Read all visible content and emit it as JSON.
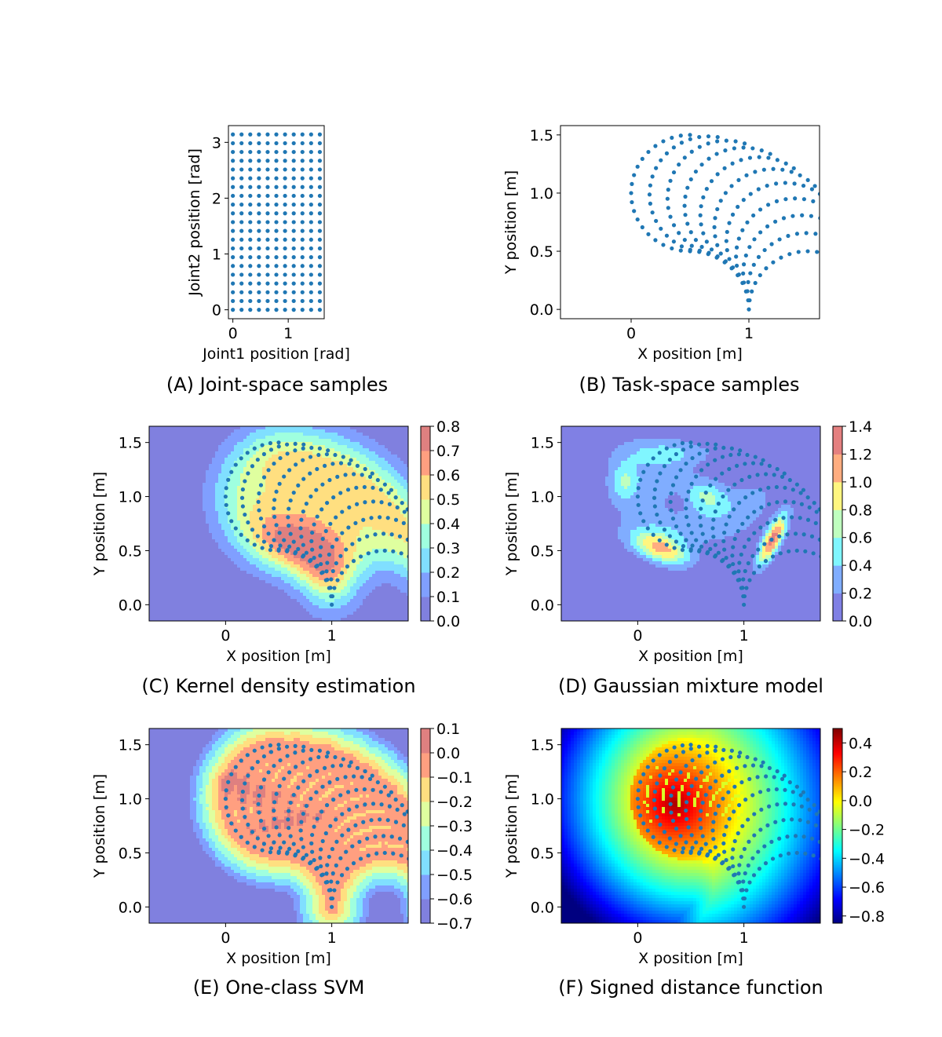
{
  "chart_data": [
    {
      "id": "A",
      "type": "scatter",
      "caption": "(A) Joint-space samples",
      "xlabel": "Joint1 position [rad]",
      "ylabel": "Joint2 position [rad]",
      "xlim": [
        -0.08,
        1.65
      ],
      "ylim": [
        -0.16,
        3.3
      ],
      "xticks": [
        "0",
        "1"
      ],
      "yticks": [
        "0",
        "1",
        "2",
        "3"
      ],
      "grid": {
        "x_from": 0,
        "x_to": 1.5708,
        "nx": 11,
        "y_from": 0,
        "y_to": 3.1416,
        "ny": 21
      },
      "point_color": "#1f77b4"
    },
    {
      "id": "B",
      "type": "scatter",
      "caption": "(B) Task-space samples",
      "xlabel": "X position [m]",
      "ylabel": "Y position [m]",
      "xlim": [
        -0.6,
        1.6
      ],
      "ylim": [
        -0.08,
        1.58
      ],
      "xticks": [
        "0",
        "1"
      ],
      "yticks": [
        "0.0",
        "0.5",
        "1.0",
        "1.5"
      ],
      "robot": {
        "link1": 1.0,
        "link2": 0.5,
        "base": [
          0.5,
          0.0
        ]
      },
      "point_color": "#1f77b4"
    },
    {
      "id": "C",
      "type": "heatmap",
      "caption": "(C) Kernel density estimation",
      "xlabel": "X position [m]",
      "ylabel": "Y position [m]",
      "xlim": [
        -0.72,
        1.72
      ],
      "ylim": [
        -0.15,
        1.65
      ],
      "xticks": [
        "0",
        "1"
      ],
      "yticks": [
        "0.0",
        "0.5",
        "1.0",
        "1.5"
      ],
      "colorbar": {
        "ticks": [
          "0.0",
          "0.1",
          "0.2",
          "0.3",
          "0.4",
          "0.5",
          "0.6",
          "0.7",
          "0.8"
        ],
        "min": 0.0,
        "max": 0.8
      },
      "colormap": "jet-filled",
      "point_color": "#1f77b4"
    },
    {
      "id": "D",
      "type": "heatmap",
      "caption": "(D) Gaussian mixture model",
      "xlabel": "X position [m]",
      "ylabel": "Y position [m]",
      "xlim": [
        -0.72,
        1.72
      ],
      "ylim": [
        -0.15,
        1.65
      ],
      "xticks": [
        "0",
        "1"
      ],
      "yticks": [
        "0.0",
        "0.5",
        "1.0",
        "1.5"
      ],
      "colorbar": {
        "ticks": [
          "0.0",
          "0.2",
          "0.4",
          "0.6",
          "0.8",
          "1.0",
          "1.2",
          "1.4"
        ],
        "min": 0.0,
        "max": 1.4
      },
      "colormap": "jet-filled",
      "point_color": "#1f77b4"
    },
    {
      "id": "E",
      "type": "heatmap",
      "caption": "(E) One-class SVM",
      "xlabel": "X position [m]",
      "ylabel": "Y position [m]",
      "xlim": [
        -0.72,
        1.72
      ],
      "ylim": [
        -0.15,
        1.65
      ],
      "xticks": [
        "0",
        "1"
      ],
      "yticks": [
        "0.0",
        "0.5",
        "1.0",
        "1.5"
      ],
      "colorbar": {
        "ticks": [
          "0.1",
          "0.0",
          "−0.1",
          "−0.2",
          "−0.3",
          "−0.4",
          "−0.5",
          "−0.6",
          "−0.7"
        ],
        "min": -0.7,
        "max": 0.1
      },
      "colormap": "jet-filled",
      "point_color": "#1f77b4"
    },
    {
      "id": "F",
      "type": "heatmap",
      "caption": "(F) Signed distance function",
      "xlabel": "X position [m]",
      "ylabel": "Y position [m]",
      "xlim": [
        -0.72,
        1.72
      ],
      "ylim": [
        -0.15,
        1.65
      ],
      "xticks": [
        "0",
        "1"
      ],
      "yticks": [
        "0.0",
        "0.5",
        "1.0",
        "1.5"
      ],
      "colorbar": {
        "ticks": [
          "0.4",
          "0.2",
          "0.0",
          "−0.2",
          "−0.4",
          "−0.6",
          "−0.8"
        ],
        "values": [
          0.4,
          0.2,
          0.0,
          -0.2,
          -0.4,
          -0.6,
          -0.8
        ],
        "min": -0.85,
        "max": 0.5
      },
      "colormap": "jet-continuous",
      "point_color": "#1f77b4"
    }
  ]
}
